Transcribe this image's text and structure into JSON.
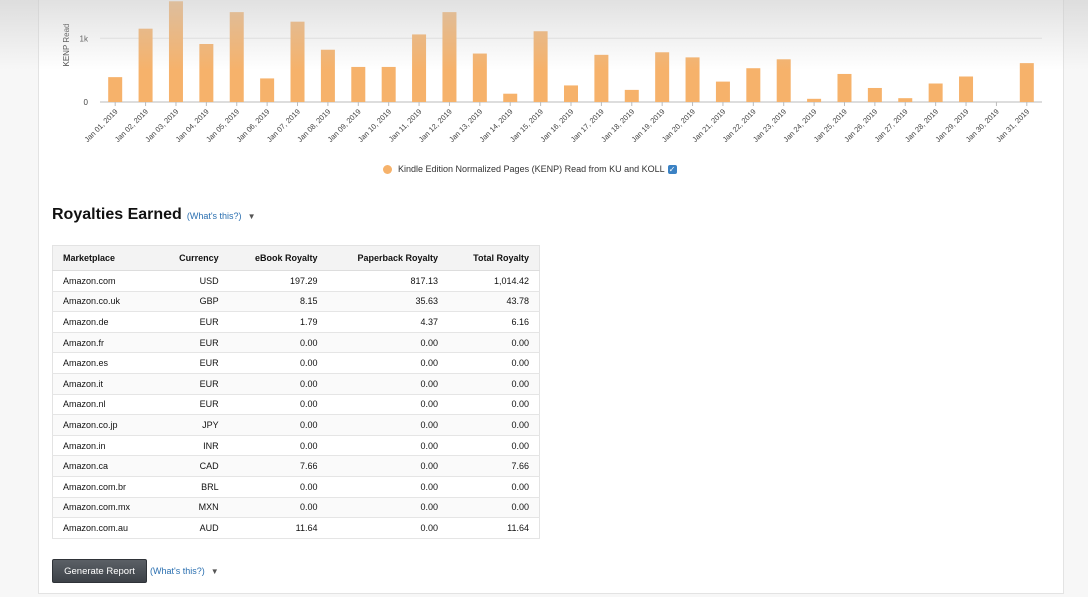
{
  "chart": {
    "ylabel": "KENP Read",
    "legend_label": "Kindle Edition Normalized Pages (KENP) Read from KU and KOLL",
    "bar_color": "#f6b26b"
  },
  "chart_data": {
    "type": "bar",
    "ylabel": "KENP Read",
    "yticks": [
      "0",
      "1k"
    ],
    "ylim": [
      0,
      1600
    ],
    "categories": [
      "Jan 01, 2019",
      "Jan 02, 2019",
      "Jan 03, 2019",
      "Jan 04, 2019",
      "Jan 05, 2019",
      "Jan 06, 2019",
      "Jan 07, 2019",
      "Jan 08, 2019",
      "Jan 09, 2019",
      "Jan 10, 2019",
      "Jan 11, 2019",
      "Jan 12, 2019",
      "Jan 13, 2019",
      "Jan 14, 2019",
      "Jan 15, 2019",
      "Jan 16, 2019",
      "Jan 17, 2019",
      "Jan 18, 2019",
      "Jan 19, 2019",
      "Jan 20, 2019",
      "Jan 21, 2019",
      "Jan 22, 2019",
      "Jan 23, 2019",
      "Jan 24, 2019",
      "Jan 25, 2019",
      "Jan 26, 2019",
      "Jan 27, 2019",
      "Jan 28, 2019",
      "Jan 29, 2019",
      "Jan 30, 2019",
      "Jan 31, 2019"
    ],
    "series": [
      {
        "name": "Kindle Edition Normalized Pages (KENP) Read from KU and KOLL",
        "values": [
          390,
          1150,
          1580,
          910,
          1410,
          370,
          1260,
          820,
          550,
          550,
          1060,
          1410,
          760,
          130,
          1110,
          260,
          740,
          190,
          780,
          700,
          320,
          530,
          670,
          50,
          440,
          220,
          60,
          290,
          400,
          0,
          610
        ]
      }
    ],
    "grid": true,
    "legend": "bottom"
  },
  "royalties": {
    "title": "Royalties Earned",
    "whats_this": "(What's this?)",
    "columns": [
      "Marketplace",
      "Currency",
      "eBook Royalty",
      "Paperback Royalty",
      "Total Royalty"
    ],
    "rows": [
      [
        "Amazon.com",
        "USD",
        "197.29",
        "817.13",
        "1,014.42"
      ],
      [
        "Amazon.co.uk",
        "GBP",
        "8.15",
        "35.63",
        "43.78"
      ],
      [
        "Amazon.de",
        "EUR",
        "1.79",
        "4.37",
        "6.16"
      ],
      [
        "Amazon.fr",
        "EUR",
        "0.00",
        "0.00",
        "0.00"
      ],
      [
        "Amazon.es",
        "EUR",
        "0.00",
        "0.00",
        "0.00"
      ],
      [
        "Amazon.it",
        "EUR",
        "0.00",
        "0.00",
        "0.00"
      ],
      [
        "Amazon.nl",
        "EUR",
        "0.00",
        "0.00",
        "0.00"
      ],
      [
        "Amazon.co.jp",
        "JPY",
        "0.00",
        "0.00",
        "0.00"
      ],
      [
        "Amazon.in",
        "INR",
        "0.00",
        "0.00",
        "0.00"
      ],
      [
        "Amazon.ca",
        "CAD",
        "7.66",
        "0.00",
        "7.66"
      ],
      [
        "Amazon.com.br",
        "BRL",
        "0.00",
        "0.00",
        "0.00"
      ],
      [
        "Amazon.com.mx",
        "MXN",
        "0.00",
        "0.00",
        "0.00"
      ],
      [
        "Amazon.com.au",
        "AUD",
        "11.64",
        "0.00",
        "11.64"
      ]
    ]
  },
  "report": {
    "button_label": "Generate Report",
    "whats_this": "(What's this?)"
  }
}
